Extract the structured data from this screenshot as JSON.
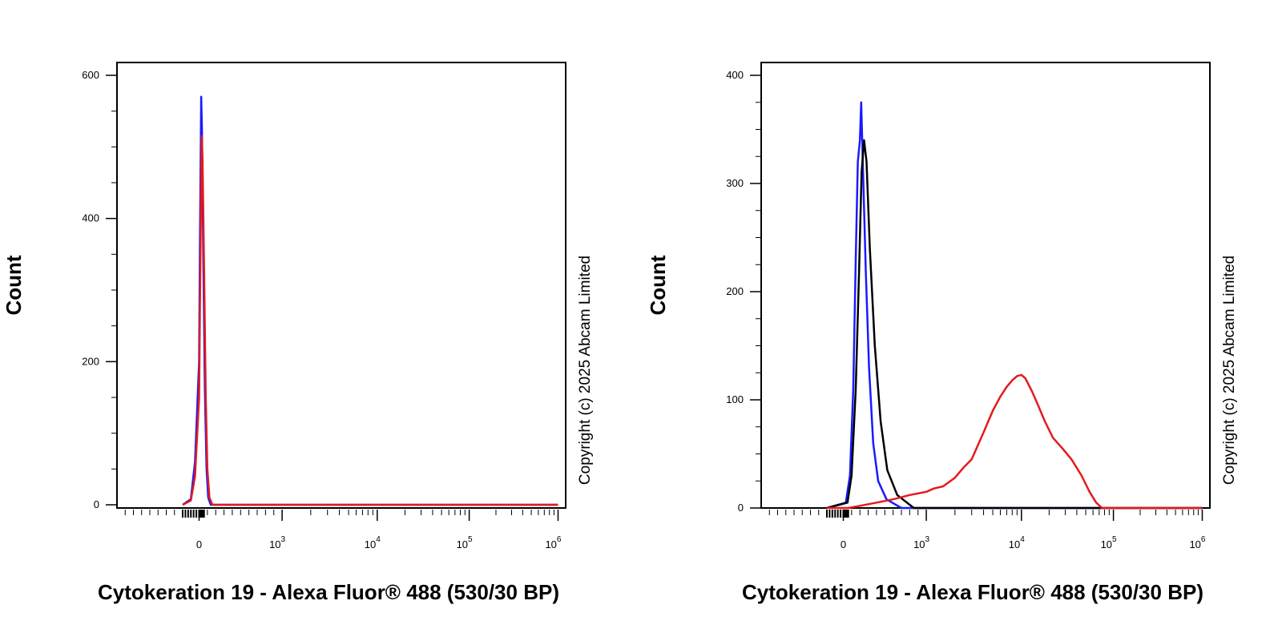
{
  "colors": {
    "isotype": "#1a1aff",
    "unlabelled": "#000000",
    "antibody": "#e41a1c"
  },
  "chart_data": [
    {
      "type": "line",
      "ylabel": "Count",
      "xlabel": "Cytokeration 19 - Alexa Fluor® 488 (530/30 BP)",
      "copyright": "Copyright (c) 2025 Abcam Limited",
      "x_scale": "biexponential",
      "xlim": [
        -300,
        1000000
      ],
      "x_ticks": [
        {
          "base": "0",
          "exp": ""
        },
        {
          "base": "10",
          "exp": "3"
        },
        {
          "base": "10",
          "exp": "4"
        },
        {
          "base": "10",
          "exp": "5"
        },
        {
          "base": "10",
          "exp": "6"
        }
      ],
      "ylim": [
        0,
        620
      ],
      "y_ticks": [
        "0",
        "200",
        "400",
        "600"
      ],
      "series": [
        {
          "color_key": "isotype",
          "points": [
            [
              -60,
              0
            ],
            [
              -30,
              8
            ],
            [
              -15,
              60
            ],
            [
              0,
              200
            ],
            [
              10,
              360
            ],
            [
              20,
              500
            ],
            [
              25,
              570
            ],
            [
              35,
              520
            ],
            [
              50,
              350
            ],
            [
              70,
              160
            ],
            [
              90,
              50
            ],
            [
              110,
              10
            ],
            [
              140,
              0
            ],
            [
              1000000,
              0
            ]
          ]
        },
        {
          "color_key": "antibody",
          "points": [
            [
              -60,
              0
            ],
            [
              -30,
              6
            ],
            [
              -15,
              40
            ],
            [
              0,
              150
            ],
            [
              15,
              330
            ],
            [
              25,
              450
            ],
            [
              32,
              515
            ],
            [
              42,
              480
            ],
            [
              60,
              330
            ],
            [
              80,
              150
            ],
            [
              100,
              50
            ],
            [
              125,
              10
            ],
            [
              160,
              0
            ],
            [
              1000000,
              0
            ]
          ]
        }
      ]
    },
    {
      "type": "line",
      "ylabel": "Count",
      "xlabel": "Cytokeration 19 - Alexa Fluor® 488 (530/30 BP)",
      "copyright": "Copyright (c) 2025 Abcam Limited",
      "x_scale": "biexponential",
      "xlim": [
        -300,
        1000000
      ],
      "x_ticks": [
        {
          "base": "0",
          "exp": ""
        },
        {
          "base": "10",
          "exp": "3"
        },
        {
          "base": "10",
          "exp": "4"
        },
        {
          "base": "10",
          "exp": "5"
        },
        {
          "base": "10",
          "exp": "6"
        }
      ],
      "ylim": [
        0,
        410
      ],
      "y_ticks": [
        "0",
        "100",
        "200",
        "300",
        "400"
      ],
      "series": [
        {
          "color_key": "isotype",
          "points": [
            [
              -60,
              0
            ],
            [
              30,
              5
            ],
            [
              80,
              30
            ],
            [
              120,
              110
            ],
            [
              150,
              230
            ],
            [
              175,
              320
            ],
            [
              200,
              340
            ],
            [
              215,
              375
            ],
            [
              235,
              320
            ],
            [
              270,
              220
            ],
            [
              310,
              130
            ],
            [
              360,
              60
            ],
            [
              420,
              25
            ],
            [
              520,
              8
            ],
            [
              700,
              0
            ],
            [
              1000000,
              0
            ]
          ]
        },
        {
          "color_key": "unlabelled",
          "points": [
            [
              -60,
              0
            ],
            [
              50,
              5
            ],
            [
              100,
              30
            ],
            [
              150,
              110
            ],
            [
              190,
              220
            ],
            [
              220,
              310
            ],
            [
              250,
              340
            ],
            [
              280,
              320
            ],
            [
              320,
              240
            ],
            [
              380,
              150
            ],
            [
              450,
              80
            ],
            [
              530,
              35
            ],
            [
              650,
              12
            ],
            [
              850,
              0
            ],
            [
              1000000,
              0
            ]
          ]
        },
        {
          "color_key": "antibody",
          "points": [
            [
              -60,
              0
            ],
            [
              60,
              0
            ],
            [
              200,
              2
            ],
            [
              400,
              5
            ],
            [
              600,
              8
            ],
            [
              800,
              12
            ],
            [
              1000,
              15
            ],
            [
              1200,
              18
            ],
            [
              1500,
              20
            ],
            [
              2000,
              28
            ],
            [
              2500,
              38
            ],
            [
              3000,
              45
            ],
            [
              4000,
              70
            ],
            [
              5000,
              90
            ],
            [
              6000,
              103
            ],
            [
              7000,
              112
            ],
            [
              8000,
              118
            ],
            [
              9000,
              122
            ],
            [
              10000,
              123
            ],
            [
              11000,
              120
            ],
            [
              13000,
              108
            ],
            [
              15000,
              96
            ],
            [
              18000,
              80
            ],
            [
              22000,
              65
            ],
            [
              28000,
              55
            ],
            [
              35000,
              45
            ],
            [
              45000,
              30
            ],
            [
              55000,
              15
            ],
            [
              65000,
              5
            ],
            [
              75000,
              0
            ],
            [
              1000000,
              0
            ]
          ]
        }
      ]
    }
  ]
}
